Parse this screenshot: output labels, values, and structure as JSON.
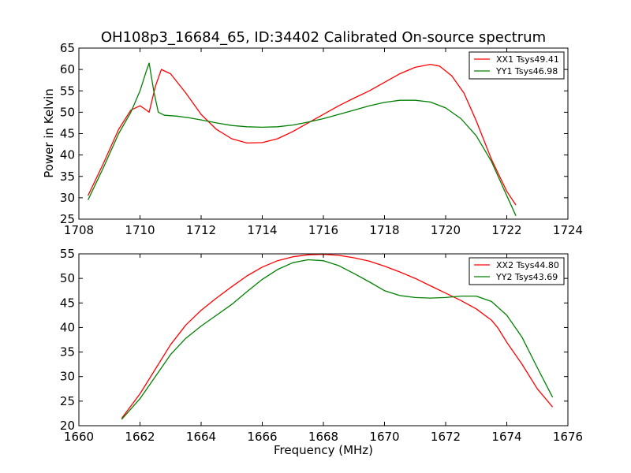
{
  "figure": {
    "title": "OH108p3_16684_65, ID:34402 Calibrated On-source spectrum",
    "xlabel": "Frequency (MHz)",
    "ylabel": "Power in Kelvin"
  },
  "chart_data": [
    {
      "type": "line",
      "title": "OH108p3_16684_65, ID:34402 Calibrated On-source spectrum",
      "xlabel": "",
      "ylabel": "Power in Kelvin",
      "xlim": [
        1708,
        1724
      ],
      "ylim": [
        25,
        65
      ],
      "xticks": [
        1708,
        1710,
        1712,
        1714,
        1716,
        1718,
        1720,
        1722,
        1724
      ],
      "yticks": [
        25,
        30,
        35,
        40,
        45,
        50,
        55,
        60,
        65
      ],
      "grid": false,
      "legend": "top-right",
      "series": [
        {
          "name": "XX1 Tsys49.41",
          "color": "#ff0000",
          "x": [
            1708.3,
            1708.8,
            1709.3,
            1709.7,
            1710.0,
            1710.15,
            1710.3,
            1710.5,
            1710.7,
            1711.0,
            1711.5,
            1712.0,
            1712.5,
            1713.0,
            1713.5,
            1714.0,
            1714.5,
            1715.0,
            1715.5,
            1716.0,
            1716.5,
            1717.0,
            1717.5,
            1718.0,
            1718.5,
            1719.0,
            1719.5,
            1719.8,
            1720.2,
            1720.6,
            1721.0,
            1721.5,
            1722.0,
            1722.3
          ],
          "y": [
            30.5,
            38.0,
            46.0,
            50.5,
            51.5,
            50.8,
            50.0,
            56.0,
            60.0,
            59.0,
            54.5,
            49.5,
            46.0,
            43.8,
            42.8,
            42.9,
            43.8,
            45.5,
            47.5,
            49.5,
            51.5,
            53.3,
            55.0,
            57.0,
            59.0,
            60.5,
            61.2,
            60.8,
            58.5,
            54.5,
            48.0,
            39.0,
            31.5,
            28.3
          ]
        },
        {
          "name": "YY1 Tsys46.98",
          "color": "#008000",
          "x": [
            1708.3,
            1708.8,
            1709.3,
            1709.7,
            1710.0,
            1710.2,
            1710.3,
            1710.45,
            1710.6,
            1710.8,
            1711.2,
            1711.6,
            1712.0,
            1712.5,
            1713.0,
            1713.5,
            1714.0,
            1714.5,
            1715.0,
            1715.5,
            1716.0,
            1716.5,
            1717.0,
            1717.5,
            1718.0,
            1718.5,
            1719.0,
            1719.5,
            1720.0,
            1720.5,
            1721.0,
            1721.5,
            1722.0,
            1722.3
          ],
          "y": [
            29.5,
            37.0,
            45.0,
            50.0,
            55.0,
            59.5,
            61.5,
            55.0,
            50.0,
            49.3,
            49.1,
            48.7,
            48.2,
            47.5,
            46.9,
            46.6,
            46.5,
            46.6,
            47.0,
            47.7,
            48.5,
            49.5,
            50.5,
            51.5,
            52.3,
            52.8,
            52.8,
            52.4,
            51.0,
            48.5,
            44.5,
            38.5,
            30.5,
            25.8
          ]
        }
      ]
    },
    {
      "type": "line",
      "title": "",
      "xlabel": "Frequency (MHz)",
      "ylabel": "",
      "xlim": [
        1660,
        1676
      ],
      "ylim": [
        20,
        55
      ],
      "xticks": [
        1660,
        1662,
        1664,
        1666,
        1668,
        1670,
        1672,
        1674,
        1676
      ],
      "yticks": [
        20,
        25,
        30,
        35,
        40,
        45,
        50,
        55
      ],
      "grid": false,
      "legend": "top-right",
      "series": [
        {
          "name": "XX2 Tsys44.80",
          "color": "#ff0000",
          "x": [
            1661.4,
            1662.0,
            1662.5,
            1663.0,
            1663.5,
            1664.0,
            1664.5,
            1665.0,
            1665.5,
            1666.0,
            1666.5,
            1667.0,
            1667.5,
            1668.0,
            1668.5,
            1669.0,
            1669.5,
            1670.0,
            1670.5,
            1671.0,
            1671.5,
            1672.0,
            1672.5,
            1673.0,
            1673.5,
            1673.7,
            1674.0,
            1674.5,
            1675.0,
            1675.5
          ],
          "y": [
            21.5,
            26.5,
            31.5,
            36.5,
            40.5,
            43.5,
            46.0,
            48.3,
            50.5,
            52.3,
            53.6,
            54.4,
            54.8,
            54.9,
            54.7,
            54.2,
            53.5,
            52.5,
            51.3,
            50.0,
            48.5,
            47.0,
            45.5,
            43.8,
            41.5,
            40.0,
            37.0,
            32.5,
            27.5,
            23.8
          ]
        },
        {
          "name": "YY2 Tsys43.69",
          "color": "#008000",
          "x": [
            1661.4,
            1662.0,
            1662.5,
            1663.0,
            1663.5,
            1664.0,
            1664.5,
            1665.0,
            1665.5,
            1666.0,
            1666.5,
            1667.0,
            1667.5,
            1668.0,
            1668.5,
            1669.0,
            1669.5,
            1670.0,
            1670.5,
            1671.0,
            1671.5,
            1672.0,
            1672.5,
            1673.0,
            1673.5,
            1674.0,
            1674.5,
            1675.0,
            1675.5
          ],
          "y": [
            21.3,
            25.5,
            30.0,
            34.5,
            37.8,
            40.3,
            42.5,
            44.7,
            47.3,
            49.8,
            51.8,
            53.2,
            53.8,
            53.6,
            52.6,
            51.0,
            49.3,
            47.5,
            46.5,
            46.1,
            46.0,
            46.1,
            46.4,
            46.4,
            45.3,
            42.5,
            38.0,
            31.8,
            25.8
          ]
        }
      ]
    }
  ]
}
